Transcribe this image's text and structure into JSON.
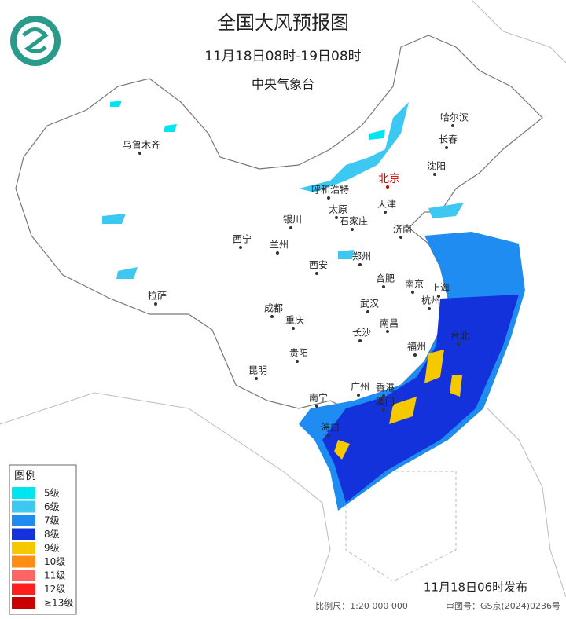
{
  "header": {
    "title": "全国大风预报图",
    "period": "11月18日08时-19日08时",
    "agency": "中央气象台"
  },
  "cities": [
    "哈尔滨",
    "长春",
    "沈阳",
    "乌鲁木齐",
    "北京",
    "呼和浩特",
    "天津",
    "银川",
    "太原",
    "石家庄",
    "济南",
    "西宁",
    "兰州",
    "郑州",
    "西安",
    "合肥",
    "南京",
    "上海",
    "拉萨",
    "成都",
    "武汉",
    "杭州",
    "重庆",
    "南昌",
    "长沙",
    "福州",
    "台北",
    "贵阳",
    "昆明",
    "广州",
    "香港",
    "南宁",
    "澳门",
    "海口"
  ],
  "legend": {
    "title": "图例",
    "items": [
      {
        "label": "5级",
        "color": "#00e6f0"
      },
      {
        "label": "6级",
        "color": "#3cc8f0"
      },
      {
        "label": "7级",
        "color": "#1e8cf0"
      },
      {
        "label": "8级",
        "color": "#1432dc"
      },
      {
        "label": "9级",
        "color": "#f5c800"
      },
      {
        "label": "10级",
        "color": "#ff8c14"
      },
      {
        "label": "11级",
        "color": "#ff6464"
      },
      {
        "label": "12级",
        "color": "#ff1e1e"
      },
      {
        "label": "≥13级",
        "color": "#c80000"
      }
    ]
  },
  "footer": {
    "issued": "11月18日06时发布",
    "scale": "比例尺：1:20 000 000",
    "approval": "审图号：GS京(2024)0236号"
  }
}
